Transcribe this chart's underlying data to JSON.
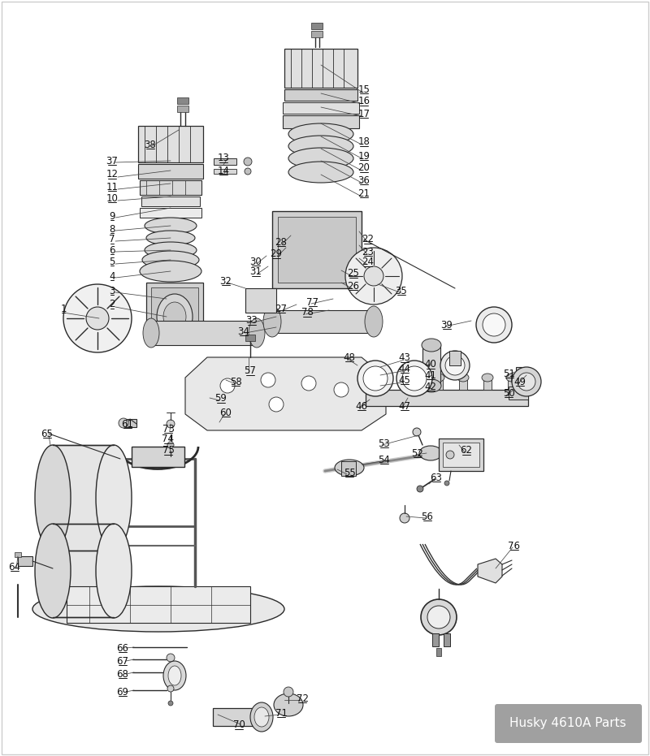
{
  "title": "Husky 4610A Parts",
  "bg_color": "#ffffff",
  "label_bg_color": "#a0a0a0",
  "label_text_color": "#ffffff",
  "line_color": "#2a2a2a",
  "fig_width": 8.0,
  "fig_height": 9.31,
  "dpi": 100
}
